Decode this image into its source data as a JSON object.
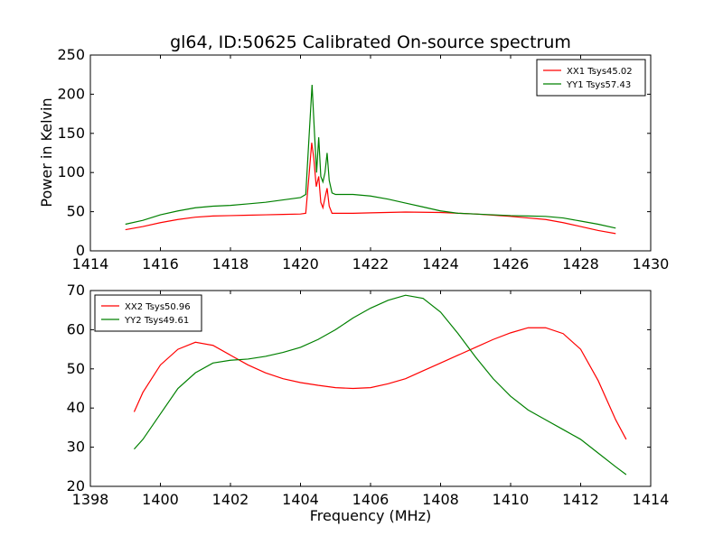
{
  "figure": {
    "title": "gl64, ID:50625 Calibrated On-source spectrum",
    "xlabel": "Frequency (MHz)",
    "ylabel": "Power in Kelvin"
  },
  "chart_data": [
    {
      "type": "line",
      "title": "gl64, ID:50625 Calibrated On-source spectrum",
      "xlabel": "",
      "ylabel": "Power in Kelvin",
      "xlim": [
        1414,
        1430
      ],
      "ylim": [
        0,
        250
      ],
      "xticks": [
        1414,
        1416,
        1418,
        1420,
        1422,
        1424,
        1426,
        1428,
        1430
      ],
      "yticks": [
        0,
        50,
        100,
        150,
        200,
        250
      ],
      "grid": false,
      "legend_position": "top-right",
      "series": [
        {
          "name": "XX1 Tsys45.02",
          "color": "#ff0000",
          "points": [
            [
              1415.0,
              27
            ],
            [
              1415.5,
              31
            ],
            [
              1416.0,
              36
            ],
            [
              1416.5,
              40
            ],
            [
              1417.0,
              43
            ],
            [
              1417.5,
              44.5
            ],
            [
              1418.0,
              45
            ],
            [
              1418.5,
              45.5
            ],
            [
              1419.0,
              46
            ],
            [
              1419.5,
              46.5
            ],
            [
              1420.0,
              47
            ],
            [
              1420.15,
              48
            ],
            [
              1420.25,
              100
            ],
            [
              1420.32,
              138
            ],
            [
              1420.38,
              118
            ],
            [
              1420.45,
              82
            ],
            [
              1420.52,
              95
            ],
            [
              1420.58,
              62
            ],
            [
              1420.64,
              55
            ],
            [
              1420.7,
              68
            ],
            [
              1420.76,
              80
            ],
            [
              1420.82,
              57
            ],
            [
              1420.9,
              48
            ],
            [
              1421.0,
              48
            ],
            [
              1421.5,
              48
            ],
            [
              1422.0,
              48.5
            ],
            [
              1423.0,
              49.5
            ],
            [
              1424.0,
              49
            ],
            [
              1425.0,
              47
            ],
            [
              1426.0,
              44
            ],
            [
              1426.5,
              42
            ],
            [
              1427.0,
              40
            ],
            [
              1427.5,
              36
            ],
            [
              1428.0,
              31
            ],
            [
              1428.5,
              26
            ],
            [
              1429.0,
              22
            ]
          ]
        },
        {
          "name": "YY1 Tsys57.43",
          "color": "#008000",
          "points": [
            [
              1415.0,
              34
            ],
            [
              1415.5,
              39
            ],
            [
              1416.0,
              46
            ],
            [
              1416.5,
              51
            ],
            [
              1417.0,
              55
            ],
            [
              1417.5,
              57
            ],
            [
              1418.0,
              58
            ],
            [
              1418.5,
              60
            ],
            [
              1419.0,
              62
            ],
            [
              1419.5,
              65
            ],
            [
              1420.0,
              68
            ],
            [
              1420.15,
              72
            ],
            [
              1420.25,
              150
            ],
            [
              1420.33,
              212
            ],
            [
              1420.4,
              150
            ],
            [
              1420.46,
              100
            ],
            [
              1420.52,
              145
            ],
            [
              1420.58,
              95
            ],
            [
              1420.64,
              88
            ],
            [
              1420.7,
              100
            ],
            [
              1420.76,
              125
            ],
            [
              1420.82,
              90
            ],
            [
              1420.9,
              74
            ],
            [
              1421.0,
              72
            ],
            [
              1421.5,
              72
            ],
            [
              1422.0,
              70
            ],
            [
              1422.5,
              66
            ],
            [
              1423.0,
              61
            ],
            [
              1423.5,
              56
            ],
            [
              1424.0,
              51
            ],
            [
              1424.5,
              48
            ],
            [
              1425.0,
              47
            ],
            [
              1425.5,
              46
            ],
            [
              1426.0,
              45
            ],
            [
              1426.5,
              44.5
            ],
            [
              1427.0,
              44
            ],
            [
              1427.5,
              42
            ],
            [
              1428.0,
              38
            ],
            [
              1428.5,
              34
            ],
            [
              1429.0,
              29
            ]
          ]
        }
      ]
    },
    {
      "type": "line",
      "title": "",
      "xlabel": "Frequency (MHz)",
      "ylabel": "",
      "xlim": [
        1398,
        1414
      ],
      "ylim": [
        20,
        70
      ],
      "xticks": [
        1398,
        1400,
        1402,
        1404,
        1406,
        1408,
        1410,
        1412,
        1414
      ],
      "yticks": [
        20,
        30,
        40,
        50,
        60,
        70
      ],
      "grid": false,
      "legend_position": "top-left",
      "series": [
        {
          "name": "XX2 Tsys50.96",
          "color": "#ff0000",
          "points": [
            [
              1399.25,
              39
            ],
            [
              1399.5,
              44
            ],
            [
              1400.0,
              51
            ],
            [
              1400.5,
              55
            ],
            [
              1401.0,
              56.8
            ],
            [
              1401.5,
              56
            ],
            [
              1402.0,
              53.5
            ],
            [
              1402.5,
              51
            ],
            [
              1403.0,
              49
            ],
            [
              1403.5,
              47.5
            ],
            [
              1404.0,
              46.5
            ],
            [
              1404.5,
              45.8
            ],
            [
              1405.0,
              45.2
            ],
            [
              1405.5,
              45
            ],
            [
              1406.0,
              45.2
            ],
            [
              1406.5,
              46.2
            ],
            [
              1407.0,
              47.5
            ],
            [
              1407.5,
              49.5
            ],
            [
              1408.0,
              51.5
            ],
            [
              1408.5,
              53.5
            ],
            [
              1409.0,
              55.5
            ],
            [
              1409.5,
              57.5
            ],
            [
              1410.0,
              59.2
            ],
            [
              1410.5,
              60.5
            ],
            [
              1411.0,
              60.5
            ],
            [
              1411.5,
              59
            ],
            [
              1412.0,
              55
            ],
            [
              1412.5,
              47
            ],
            [
              1413.0,
              37
            ],
            [
              1413.3,
              32
            ]
          ]
        },
        {
          "name": "YY2 Tsys49.61",
          "color": "#008000",
          "points": [
            [
              1399.25,
              29.5
            ],
            [
              1399.5,
              32
            ],
            [
              1400.0,
              38.5
            ],
            [
              1400.5,
              45
            ],
            [
              1401.0,
              49
            ],
            [
              1401.5,
              51.5
            ],
            [
              1402.0,
              52.2
            ],
            [
              1402.5,
              52.5
            ],
            [
              1403.0,
              53.2
            ],
            [
              1403.5,
              54.2
            ],
            [
              1404.0,
              55.5
            ],
            [
              1404.5,
              57.5
            ],
            [
              1405.0,
              60
            ],
            [
              1405.5,
              63
            ],
            [
              1406.0,
              65.5
            ],
            [
              1406.5,
              67.5
            ],
            [
              1407.0,
              68.8
            ],
            [
              1407.5,
              68
            ],
            [
              1408.0,
              64.5
            ],
            [
              1408.5,
              59
            ],
            [
              1409.0,
              53
            ],
            [
              1409.5,
              47.5
            ],
            [
              1410.0,
              43
            ],
            [
              1410.5,
              39.5
            ],
            [
              1411.0,
              37
            ],
            [
              1411.5,
              34.5
            ],
            [
              1412.0,
              32
            ],
            [
              1412.5,
              28.5
            ],
            [
              1413.0,
              25
            ],
            [
              1413.3,
              23
            ]
          ]
        }
      ]
    }
  ]
}
